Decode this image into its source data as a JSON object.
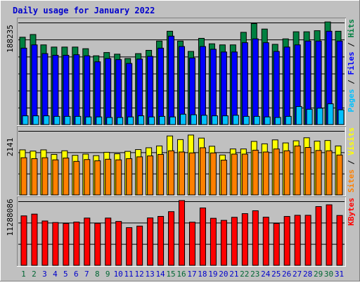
{
  "chart_data": {
    "type": "bar",
    "title": "Daily usage for January 2022",
    "categories": [
      "1",
      "2",
      "3",
      "4",
      "5",
      "6",
      "7",
      "8",
      "9",
      "10",
      "11",
      "12",
      "13",
      "14",
      "15",
      "16",
      "17",
      "18",
      "19",
      "20",
      "21",
      "22",
      "23",
      "24",
      "25",
      "26",
      "27",
      "28",
      "29",
      "30",
      "31"
    ],
    "weekend_days": [
      "1",
      "2",
      "8",
      "9",
      "15",
      "16",
      "22",
      "23",
      "29",
      "30"
    ],
    "colors": {
      "title": "#0000cc",
      "day_label_weekday": "#0000cc",
      "day_label_weekend": "#006633",
      "hits": "#008040",
      "files": "#0000ff",
      "pages": "#00c0ff",
      "visits": "#ffff00",
      "sites": "#ff8000",
      "kbytes": "#ff0000",
      "frame_bg": "#c0c0c0"
    },
    "panels": [
      {
        "id": "hits-files-pages",
        "max_label": "188235",
        "ymax": 188235,
        "legend": [
          {
            "text": "Pages",
            "color": "#00c0ff"
          },
          {
            "text": " / ",
            "color": "#000000"
          },
          {
            "text": "Files",
            "color": "#0000ff"
          },
          {
            "text": " / ",
            "color": "#000000"
          },
          {
            "text": "Hits",
            "color": "#008040"
          }
        ],
        "series": [
          {
            "name": "Hits",
            "color": "#008040",
            "values": [
              160000,
              165000,
              146000,
              142000,
              142000,
              142000,
              139000,
              126000,
              132000,
              129000,
              121000,
              130000,
              136000,
              153000,
              171000,
              153000,
              134000,
              158000,
              148000,
              146000,
              146000,
              169000,
              185000,
              175000,
              147000,
              157000,
              170000,
              170000,
              172000,
              188000,
              171000
            ]
          },
          {
            "name": "Files",
            "color": "#0000ff",
            "values": [
              140000,
              146000,
              130000,
              127000,
              127000,
              128000,
              126000,
              115000,
              121000,
              119000,
              112000,
              120000,
              125000,
              140000,
              162000,
              143000,
              122000,
              143000,
              138000,
              133000,
              133000,
              150000,
              157000,
              150000,
              134000,
              142000,
              146000,
              153000,
              153000,
              171000,
              153000
            ]
          },
          {
            "name": "Pages",
            "color": "#00c0ff",
            "values": [
              16000,
              16000,
              16000,
              15000,
              15000,
              15000,
              14000,
              14000,
              13000,
              13000,
              14000,
              16000,
              14000,
              15000,
              14000,
              19000,
              18000,
              17000,
              16000,
              16000,
              17000,
              15000,
              15000,
              14000,
              13000,
              15000,
              33000,
              28000,
              30000,
              38000,
              27000
            ]
          }
        ]
      },
      {
        "id": "visits-sites",
        "max_label": "2141",
        "ymax": 2141,
        "legend": [
          {
            "text": "Sites",
            "color": "#ff8000"
          },
          {
            "text": " / ",
            "color": "#000000"
          },
          {
            "text": "Visits",
            "color": "#ffff00"
          }
        ],
        "series": [
          {
            "name": "Visits",
            "color": "#ffff00",
            "values": [
              1490,
              1450,
              1490,
              1340,
              1460,
              1310,
              1350,
              1300,
              1410,
              1360,
              1440,
              1500,
              1560,
              1620,
              1950,
              1830,
              1980,
              1880,
              1610,
              1320,
              1520,
              1520,
              1770,
              1690,
              1820,
              1720,
              1790,
              1890,
              1780,
              1800,
              1620
            ]
          },
          {
            "name": "Sites",
            "color": "#ff8000",
            "values": [
              1230,
              1200,
              1230,
              1160,
              1220,
              1110,
              1170,
              1130,
              1180,
              1160,
              1200,
              1260,
              1290,
              1340,
              1460,
              1420,
              1390,
              1560,
              1390,
              1150,
              1350,
              1350,
              1480,
              1420,
              1520,
              1460,
              1620,
              1570,
              1470,
              1460,
              1320
            ]
          }
        ]
      },
      {
        "id": "kbytes",
        "max_label": "11288086",
        "ymax": 11288086,
        "legend": [
          {
            "text": "KBytes",
            "color": "#ff0000"
          }
        ],
        "series": [
          {
            "name": "KBytes",
            "color": "#ff0000",
            "values": [
              8620000,
              8930000,
              7730000,
              7460000,
              7300000,
              7540000,
              8240000,
              7330000,
              8240000,
              7650000,
              6570000,
              6840000,
              8260000,
              8530000,
              9360000,
              11290000,
              7520000,
              10000000,
              8200000,
              7840000,
              8370000,
              9010000,
              9510000,
              8390000,
              7300000,
              8520000,
              8720000,
              8720000,
              10240000,
              10550000,
              8690000
            ]
          }
        ]
      }
    ]
  }
}
